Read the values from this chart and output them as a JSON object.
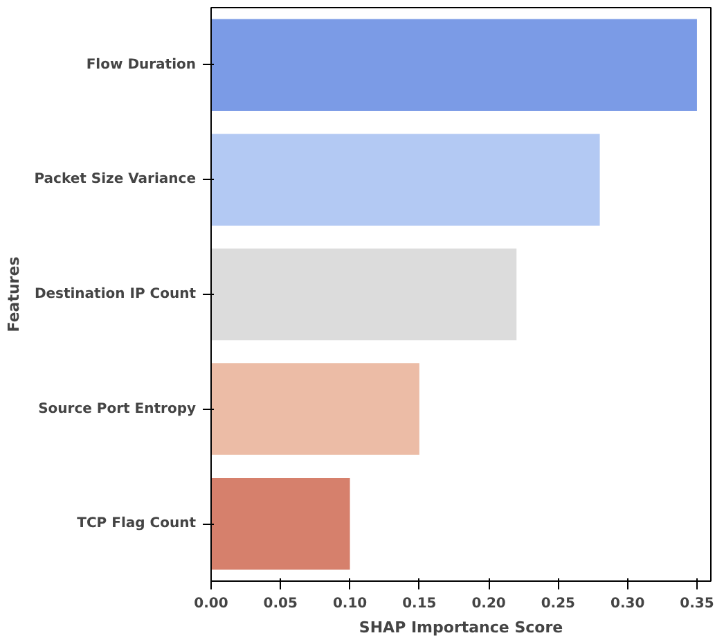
{
  "chart_data": {
    "type": "bar",
    "orientation": "horizontal",
    "xlabel": "SHAP Importance Score",
    "ylabel": "Features",
    "categories": [
      "Flow Duration",
      "Packet Size Variance",
      "Destination IP Count",
      "Source Port Entropy",
      "TCP Flag Count"
    ],
    "values": [
      0.35,
      0.28,
      0.22,
      0.15,
      0.1
    ],
    "colors": [
      "#7b9be6",
      "#b3c9f3",
      "#dcdcdc",
      "#ecbca6",
      "#d6806c"
    ],
    "xlim": [
      0,
      0.36
    ],
    "xticks": [
      {
        "value": 0,
        "label": "0.00"
      },
      {
        "value": 0.05,
        "label": "0.05"
      },
      {
        "value": 0.1,
        "label": "0.10"
      },
      {
        "value": 0.15,
        "label": "0.15"
      },
      {
        "value": 0.2,
        "label": "0.20"
      },
      {
        "value": 0.25,
        "label": "0.25"
      },
      {
        "value": 0.3,
        "label": "0.30"
      },
      {
        "value": 0.35,
        "label": "0.35"
      }
    ],
    "grid": false
  }
}
